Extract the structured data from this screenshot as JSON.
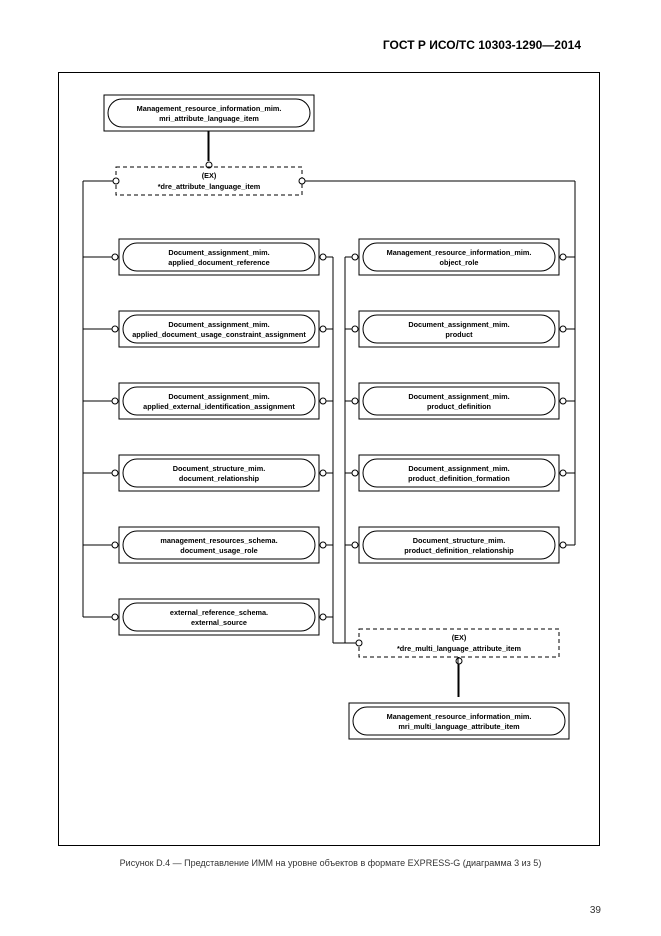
{
  "header": "ГОСТ Р ИСО/ТС 10303-1290—2014",
  "caption": "Рисунок D.4 — Представление ИММ на уровне объектов в формате EXPRESS-G (диаграмма 3 из 5)",
  "page_number": "39",
  "diagram": {
    "top_entity": {
      "l1": "Management_resource_information_mim.",
      "l2": "mri_attribute_language_item"
    },
    "ex1": {
      "tag": "(EX)",
      "label": "*dre_attribute_language_item"
    },
    "left_entities": [
      {
        "l1": "Document_assignment_mim.",
        "l2": "applied_document_reference"
      },
      {
        "l1": "Document_assignment_mim.",
        "l2": "applied_document_usage_constraint_assignment"
      },
      {
        "l1": "Document_assignment_mim.",
        "l2": "applied_external_identification_assignment"
      },
      {
        "l1": "Document_structure_mim.",
        "l2": "document_relationship"
      },
      {
        "l1": "management_resources_schema.",
        "l2": "document_usage_role"
      },
      {
        "l1": "external_reference_schema.",
        "l2": "external_source"
      }
    ],
    "right_entities": [
      {
        "l1": "Management_resource_information_mim.",
        "l2": "object_role"
      },
      {
        "l1": "Document_assignment_mim.",
        "l2": "product"
      },
      {
        "l1": "Document_assignment_mim.",
        "l2": "product_definition"
      },
      {
        "l1": "Document_assignment_mim.",
        "l2": "product_definition_formation"
      },
      {
        "l1": "Document_structure_mim.",
        "l2": "product_definition_relationship"
      }
    ],
    "ex2": {
      "tag": "(EX)",
      "label": "*dre_multi_language_attribute_item"
    },
    "bottom_entity": {
      "l1": "Management_resource_information_mim.",
      "l2": "mri_multi_language_attribute_item"
    }
  },
  "style": {
    "stroke": "#000000",
    "dash": "4,3",
    "entity_h": 36,
    "entity_outer_w": 186,
    "entity_inner_pad": 4
  }
}
